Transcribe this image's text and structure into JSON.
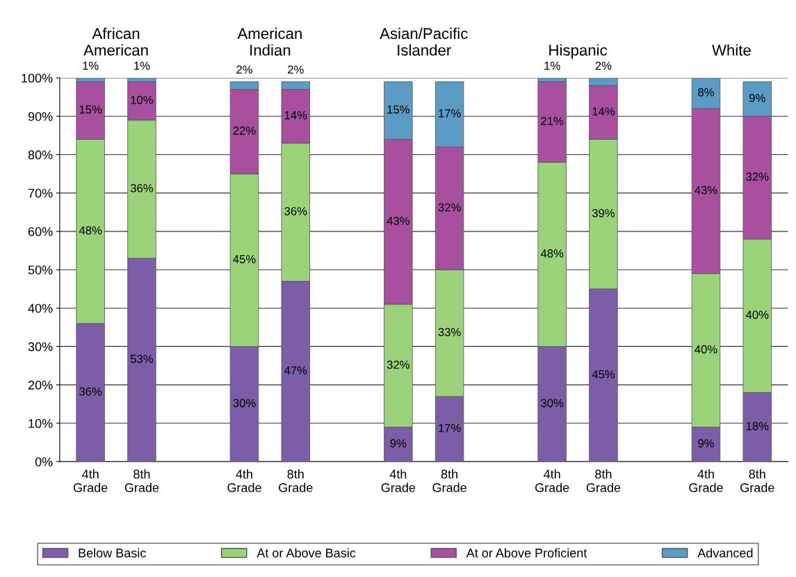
{
  "chart_data": {
    "type": "bar",
    "stacked": true,
    "categories": [
      "4th\nGrade",
      "8th\nGrade",
      null,
      "4th\nGrade",
      "8th\nGrade",
      null,
      "4th\nGrade",
      "8th\nGrade",
      null,
      "4th\nGrade",
      "8th\nGrade",
      null,
      "4th\nGrade",
      "8th\nGrade"
    ],
    "series": [
      {
        "name": "Below Basic",
        "color": "#7b5ea7",
        "values": [
          36,
          53,
          null,
          30,
          47,
          null,
          9,
          17,
          null,
          30,
          45,
          null,
          9,
          18
        ],
        "value_labels": [
          "36%",
          "53%",
          null,
          "30%",
          "47%",
          null,
          "9%",
          "17%",
          null,
          "30%",
          "45%",
          null,
          "9%",
          "18%"
        ]
      },
      {
        "name": "At or Above Basic",
        "color": "#9ad37a",
        "values": [
          48,
          36,
          null,
          45,
          36,
          null,
          32,
          33,
          null,
          48,
          39,
          null,
          40,
          40
        ],
        "value_labels": [
          "48%",
          "36%",
          null,
          "45%",
          "36%",
          null,
          "32%",
          "33%",
          null,
          "48%",
          "39%",
          null,
          "40%",
          "40%"
        ]
      },
      {
        "name": "At or Above Proficient",
        "color": "#a8509f",
        "values": [
          15,
          10,
          null,
          22,
          14,
          null,
          43,
          32,
          null,
          21,
          14,
          null,
          43,
          32
        ],
        "value_labels": [
          "15%",
          "10%",
          null,
          "22%",
          "14%",
          null,
          "43%",
          "32%",
          null,
          "21%",
          "14%",
          null,
          "43%",
          "32%"
        ]
      },
      {
        "name": "Advanced",
        "color": "#5b9cc4",
        "values": [
          1,
          1,
          null,
          2,
          2,
          null,
          15,
          17,
          null,
          1,
          2,
          null,
          8,
          9
        ],
        "value_labels": [
          "1%",
          "1%",
          null,
          "2%",
          "2%",
          null,
          "15%",
          "17%",
          null,
          "1%",
          "2%",
          null,
          "8%",
          "9%"
        ]
      }
    ],
    "annotations": [
      "African\nAmerican",
      "American\nIndian",
      "Asian/Pacific\nIslander",
      "Hispanic",
      "White"
    ],
    "ylim": [
      0,
      100
    ],
    "yticks": [
      {
        "value": 0,
        "label": "0%"
      },
      {
        "value": 10,
        "label": "10%"
      },
      {
        "value": 20,
        "label": "20%"
      },
      {
        "value": 30,
        "label": "30%"
      },
      {
        "value": 40,
        "label": "40%"
      },
      {
        "value": 50,
        "label": "50%"
      },
      {
        "value": 60,
        "label": "60%"
      },
      {
        "value": 70,
        "label": "70%"
      },
      {
        "value": 80,
        "label": "80%"
      },
      {
        "value": 90,
        "label": "90%"
      },
      {
        "value": 100,
        "label": "100%"
      }
    ],
    "grid": "y",
    "legend": "bottom"
  }
}
